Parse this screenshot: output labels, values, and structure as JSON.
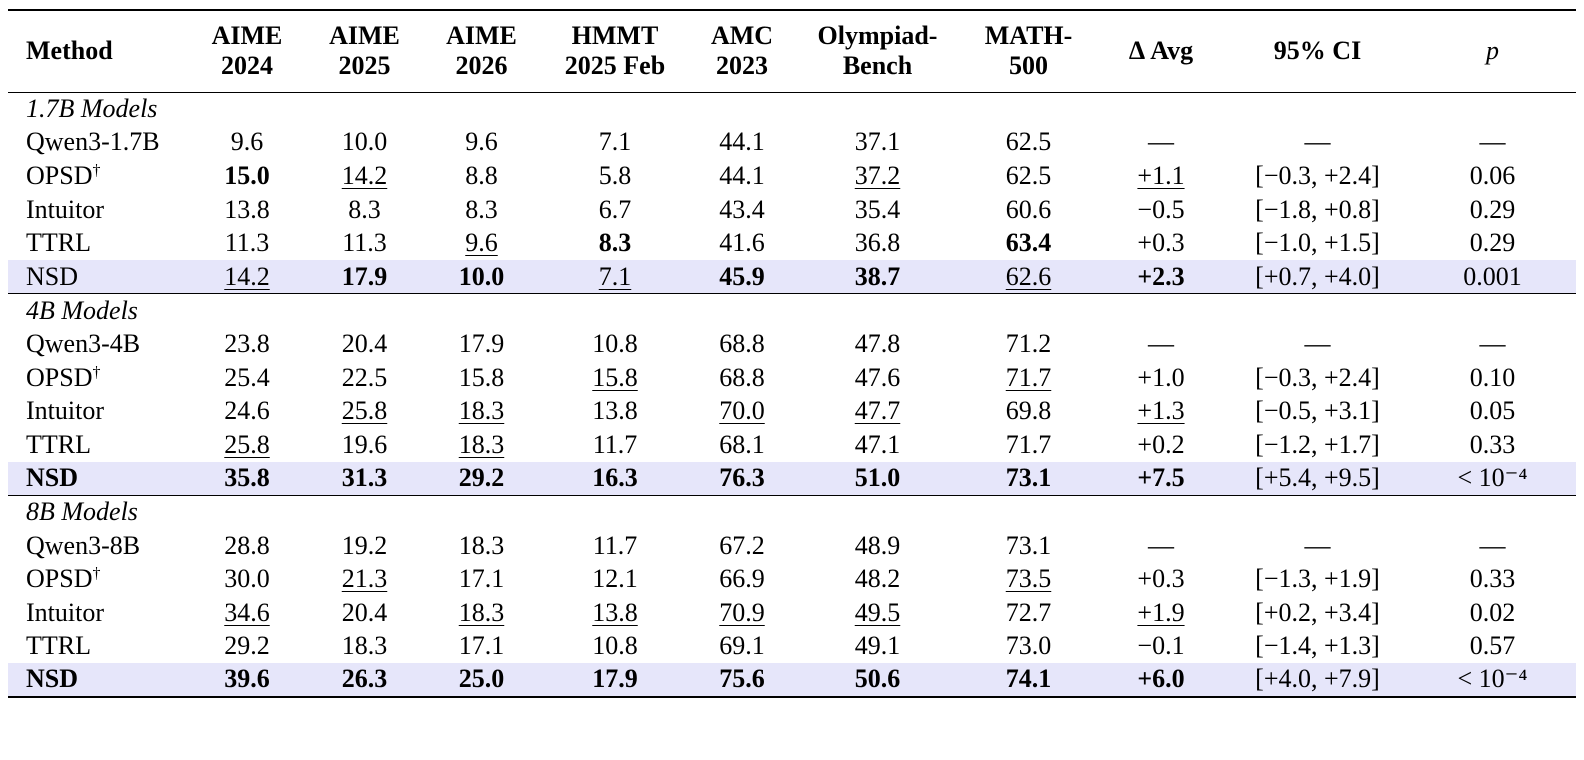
{
  "table": {
    "columns": [
      {
        "key": "method",
        "lines": [
          "Method"
        ]
      },
      {
        "key": "aime2024",
        "lines": [
          "AIME",
          "2024"
        ]
      },
      {
        "key": "aime2025",
        "lines": [
          "AIME",
          "2025"
        ]
      },
      {
        "key": "aime2026",
        "lines": [
          "AIME",
          "2026"
        ]
      },
      {
        "key": "hmmt",
        "lines": [
          "HMMT",
          "2025 Feb"
        ]
      },
      {
        "key": "amc",
        "lines": [
          "AMC",
          "2023"
        ]
      },
      {
        "key": "olympiad",
        "lines": [
          "Olympiad-",
          "Bench"
        ]
      },
      {
        "key": "math500",
        "lines": [
          "MATH-",
          "500"
        ]
      },
      {
        "key": "davg",
        "lines": [
          "Δ Avg"
        ]
      },
      {
        "key": "ci",
        "lines": [
          "95% CI"
        ]
      },
      {
        "key": "p",
        "lines": [
          "p"
        ]
      }
    ],
    "groups": [
      {
        "label": "1.7B Models",
        "rows": [
          {
            "method": "Qwen3-1.7B",
            "cells": [
              [
                "9.6",
                ""
              ],
              [
                "10.0",
                ""
              ],
              [
                "9.6",
                ""
              ],
              [
                "7.1",
                ""
              ],
              [
                "44.1",
                ""
              ],
              [
                "37.1",
                ""
              ],
              [
                "62.5",
                ""
              ],
              [
                "—",
                ""
              ],
              [
                "—",
                ""
              ],
              [
                "—",
                ""
              ]
            ]
          },
          {
            "method": "OPSD",
            "dagger": "†",
            "cells": [
              [
                "15.0",
                "b"
              ],
              [
                "14.2",
                "u"
              ],
              [
                "8.8",
                ""
              ],
              [
                "5.8",
                ""
              ],
              [
                "44.1",
                ""
              ],
              [
                "37.2",
                "u"
              ],
              [
                "62.5",
                ""
              ],
              [
                "+1.1",
                "u"
              ],
              [
                "[−0.3, +2.4]",
                ""
              ],
              [
                "0.06",
                ""
              ]
            ]
          },
          {
            "method": "Intuitor",
            "cells": [
              [
                "13.8",
                ""
              ],
              [
                "8.3",
                ""
              ],
              [
                "8.3",
                ""
              ],
              [
                "6.7",
                ""
              ],
              [
                "43.4",
                ""
              ],
              [
                "35.4",
                ""
              ],
              [
                "60.6",
                ""
              ],
              [
                "−0.5",
                ""
              ],
              [
                "[−1.8, +0.8]",
                ""
              ],
              [
                "0.29",
                ""
              ]
            ]
          },
          {
            "method": "TTRL",
            "cells": [
              [
                "11.3",
                ""
              ],
              [
                "11.3",
                ""
              ],
              [
                "9.6",
                "u"
              ],
              [
                "8.3",
                "b"
              ],
              [
                "41.6",
                ""
              ],
              [
                "36.8",
                ""
              ],
              [
                "63.4",
                "b"
              ],
              [
                "+0.3",
                ""
              ],
              [
                "[−1.0, +1.5]",
                ""
              ],
              [
                "0.29",
                ""
              ]
            ]
          },
          {
            "method": "NSD",
            "highlight": true,
            "cells": [
              [
                "14.2",
                "u"
              ],
              [
                "17.9",
                "b"
              ],
              [
                "10.0",
                "b"
              ],
              [
                "7.1",
                "u"
              ],
              [
                "45.9",
                "b"
              ],
              [
                "38.7",
                "b"
              ],
              [
                "62.6",
                "u"
              ],
              [
                "+2.3",
                "b"
              ],
              [
                "[+0.7, +4.0]",
                ""
              ],
              [
                "0.001",
                ""
              ]
            ]
          }
        ]
      },
      {
        "label": "4B Models",
        "rows": [
          {
            "method": "Qwen3-4B",
            "cells": [
              [
                "23.8",
                ""
              ],
              [
                "20.4",
                ""
              ],
              [
                "17.9",
                ""
              ],
              [
                "10.8",
                ""
              ],
              [
                "68.8",
                ""
              ],
              [
                "47.8",
                ""
              ],
              [
                "71.2",
                ""
              ],
              [
                "—",
                ""
              ],
              [
                "—",
                ""
              ],
              [
                "—",
                ""
              ]
            ]
          },
          {
            "method": "OPSD",
            "dagger": "†",
            "cells": [
              [
                "25.4",
                ""
              ],
              [
                "22.5",
                ""
              ],
              [
                "15.8",
                ""
              ],
              [
                "15.8",
                "u"
              ],
              [
                "68.8",
                ""
              ],
              [
                "47.6",
                ""
              ],
              [
                "71.7",
                "u"
              ],
              [
                "+1.0",
                ""
              ],
              [
                "[−0.3, +2.4]",
                ""
              ],
              [
                "0.10",
                ""
              ]
            ]
          },
          {
            "method": "Intuitor",
            "cells": [
              [
                "24.6",
                ""
              ],
              [
                "25.8",
                "u"
              ],
              [
                "18.3",
                "u"
              ],
              [
                "13.8",
                ""
              ],
              [
                "70.0",
                "u"
              ],
              [
                "47.7",
                "u"
              ],
              [
                "69.8",
                ""
              ],
              [
                "+1.3",
                "u"
              ],
              [
                "[−0.5, +3.1]",
                ""
              ],
              [
                "0.05",
                ""
              ]
            ]
          },
          {
            "method": "TTRL",
            "cells": [
              [
                "25.8",
                "u"
              ],
              [
                "19.6",
                ""
              ],
              [
                "18.3",
                "u"
              ],
              [
                "11.7",
                ""
              ],
              [
                "68.1",
                ""
              ],
              [
                "47.1",
                ""
              ],
              [
                "71.7",
                ""
              ],
              [
                "+0.2",
                ""
              ],
              [
                "[−1.2, +1.7]",
                ""
              ],
              [
                "0.33",
                ""
              ]
            ]
          },
          {
            "method": "NSD",
            "highlight": true,
            "bold_method": true,
            "cells": [
              [
                "35.8",
                "b"
              ],
              [
                "31.3",
                "b"
              ],
              [
                "29.2",
                "b"
              ],
              [
                "16.3",
                "b"
              ],
              [
                "76.3",
                "b"
              ],
              [
                "51.0",
                "b"
              ],
              [
                "73.1",
                "b"
              ],
              [
                "+7.5",
                "b"
              ],
              [
                "[+5.4, +9.5]",
                ""
              ],
              [
                "< 10⁻⁴",
                ""
              ]
            ]
          }
        ]
      },
      {
        "label": "8B Models",
        "rows": [
          {
            "method": "Qwen3-8B",
            "cells": [
              [
                "28.8",
                ""
              ],
              [
                "19.2",
                ""
              ],
              [
                "18.3",
                ""
              ],
              [
                "11.7",
                ""
              ],
              [
                "67.2",
                ""
              ],
              [
                "48.9",
                ""
              ],
              [
                "73.1",
                ""
              ],
              [
                "—",
                ""
              ],
              [
                "—",
                ""
              ],
              [
                "—",
                ""
              ]
            ]
          },
          {
            "method": "OPSD",
            "dagger": "†",
            "cells": [
              [
                "30.0",
                ""
              ],
              [
                "21.3",
                "u"
              ],
              [
                "17.1",
                ""
              ],
              [
                "12.1",
                ""
              ],
              [
                "66.9",
                ""
              ],
              [
                "48.2",
                ""
              ],
              [
                "73.5",
                "u"
              ],
              [
                "+0.3",
                ""
              ],
              [
                "[−1.3, +1.9]",
                ""
              ],
              [
                "0.33",
                ""
              ]
            ]
          },
          {
            "method": "Intuitor",
            "cells": [
              [
                "34.6",
                "u"
              ],
              [
                "20.4",
                ""
              ],
              [
                "18.3",
                "u"
              ],
              [
                "13.8",
                "u"
              ],
              [
                "70.9",
                "u"
              ],
              [
                "49.5",
                "u"
              ],
              [
                "72.7",
                ""
              ],
              [
                "+1.9",
                "u"
              ],
              [
                "[+0.2, +3.4]",
                ""
              ],
              [
                "0.02",
                ""
              ]
            ]
          },
          {
            "method": "TTRL",
            "cells": [
              [
                "29.2",
                ""
              ],
              [
                "18.3",
                ""
              ],
              [
                "17.1",
                ""
              ],
              [
                "10.8",
                ""
              ],
              [
                "69.1",
                ""
              ],
              [
                "49.1",
                ""
              ],
              [
                "73.0",
                ""
              ],
              [
                "−0.1",
                ""
              ],
              [
                "[−1.4, +1.3]",
                ""
              ],
              [
                "0.57",
                ""
              ]
            ]
          },
          {
            "method": "NSD",
            "highlight": true,
            "bold_method": true,
            "cells": [
              [
                "39.6",
                "b"
              ],
              [
                "26.3",
                "b"
              ],
              [
                "25.0",
                "b"
              ],
              [
                "17.9",
                "b"
              ],
              [
                "75.6",
                "b"
              ],
              [
                "50.6",
                "b"
              ],
              [
                "74.1",
                "b"
              ],
              [
                "+6.0",
                "b"
              ],
              [
                "[+4.0, +7.9]",
                ""
              ],
              [
                "< 10⁻⁴",
                ""
              ]
            ]
          }
        ]
      }
    ]
  }
}
